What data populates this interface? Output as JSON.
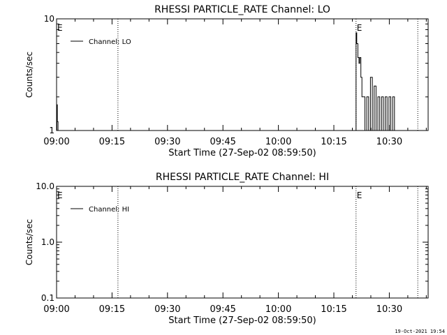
{
  "footer": {
    "timestamp": "19-Oct-2021 19:54"
  },
  "chart_data": [
    {
      "type": "line",
      "title": "RHESSI PARTICLE_RATE Channel: LO",
      "xlabel": "Start Time (27-Sep-02 08:59:50)",
      "ylabel": "Counts/sec",
      "x_ticks": [
        "09:00",
        "09:15",
        "09:30",
        "09:45",
        "10:00",
        "10:15",
        "10:30"
      ],
      "x_tick_minutes": [
        0,
        15,
        30,
        45,
        60,
        75,
        90
      ],
      "xlim_minutes": [
        0,
        100.5
      ],
      "y_scale": "log",
      "ylim": [
        1,
        10
      ],
      "y_ticks": [
        1,
        10
      ],
      "y_tick_labels": [
        "1",
        "10"
      ],
      "legend": {
        "placement": "top-left",
        "entries": [
          "Channel: LO"
        ]
      },
      "markers": [
        {
          "label": "E",
          "minute": 0
        },
        {
          "label": "E",
          "minute": 81
        }
      ],
      "vlines_minutes": [
        16.6,
        81,
        97.7
      ],
      "series": [
        {
          "name": "Channel: LO",
          "x_minutes": [
            0,
            0.1,
            0.2,
            0.4,
            80.6,
            81,
            81.2,
            81.5,
            81.8,
            82,
            82.3,
            82.6,
            82.8,
            83.4,
            83.9,
            84.4,
            84.9,
            85.4,
            85.9,
            86.4,
            86.9,
            87.4,
            87.9,
            88.4,
            88.9,
            89.4,
            89.9,
            90.4,
            90.9,
            91.4
          ],
          "values": [
            1,
            1.7,
            1.2,
            1,
            1,
            7.5,
            6,
            4.5,
            4,
            4.5,
            3,
            2,
            2,
            1,
            2,
            1,
            3,
            1,
            2.5,
            1,
            2,
            1,
            2,
            1,
            2,
            1,
            2,
            1,
            2,
            1
          ]
        }
      ]
    },
    {
      "type": "line",
      "title": "RHESSI PARTICLE_RATE Channel: HI",
      "xlabel": "Start Time (27-Sep-02 08:59:50)",
      "ylabel": "Counts/sec",
      "x_ticks": [
        "09:00",
        "09:15",
        "09:30",
        "09:45",
        "10:00",
        "10:15",
        "10:30"
      ],
      "x_tick_minutes": [
        0,
        15,
        30,
        45,
        60,
        75,
        90
      ],
      "xlim_minutes": [
        0,
        100.5
      ],
      "y_scale": "log",
      "ylim": [
        0.1,
        10
      ],
      "y_ticks": [
        0.1,
        1,
        10
      ],
      "y_tick_labels": [
        "0.1",
        "1.0",
        "10.0"
      ],
      "legend": {
        "placement": "top-left",
        "entries": [
          "Channel: HI"
        ]
      },
      "markers": [
        {
          "label": "E",
          "minute": 0
        },
        {
          "label": "E",
          "minute": 81
        }
      ],
      "vlines_minutes": [
        16.6,
        81,
        97.7
      ],
      "series": [
        {
          "name": "Channel: HI",
          "x_minutes": [],
          "values": []
        }
      ]
    }
  ]
}
